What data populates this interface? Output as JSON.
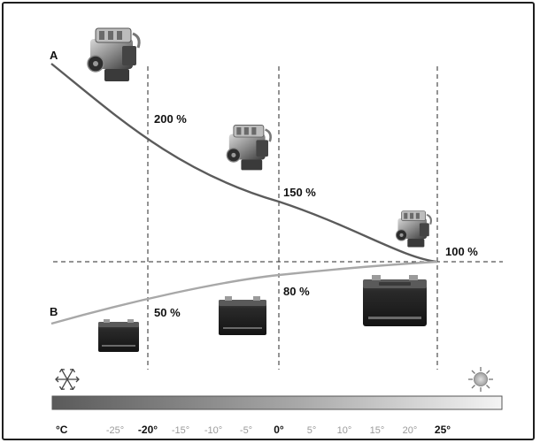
{
  "curves": {
    "a": {
      "label": "A",
      "color": "#5b5b5b"
    },
    "b": {
      "label": "B",
      "color": "#a8a8a8"
    }
  },
  "percent_labels": {
    "a_minus20": "200 %",
    "a_0": "150 %",
    "ab_25": "100 %",
    "b_0": "80 %",
    "b_minus20": "50 %"
  },
  "scale": {
    "unit": "°C",
    "ticks": [
      {
        "value": -25,
        "label": "-25°",
        "bold": false
      },
      {
        "value": -20,
        "label": "-20°",
        "bold": true
      },
      {
        "value": -15,
        "label": "-15°",
        "bold": false
      },
      {
        "value": -10,
        "label": "-10°",
        "bold": false
      },
      {
        "value": -5,
        "label": "-5°",
        "bold": false
      },
      {
        "value": 0,
        "label": "0°",
        "bold": true
      },
      {
        "value": 5,
        "label": "5°",
        "bold": false
      },
      {
        "value": 10,
        "label": "10°",
        "bold": false
      },
      {
        "value": 15,
        "label": "15°",
        "bold": false
      },
      {
        "value": 20,
        "label": "20°",
        "bold": false
      },
      {
        "value": 25,
        "label": "25°",
        "bold": true
      }
    ]
  },
  "icons": {
    "cold": "snowflake-icon",
    "warm": "sun-icon",
    "engine": "engine-icon",
    "battery": "car-battery-icon"
  },
  "colors": {
    "gradient_cold": "#5a5a5a",
    "gradient_warm": "#f4f4f4",
    "grid": "#2a2a2a"
  }
}
